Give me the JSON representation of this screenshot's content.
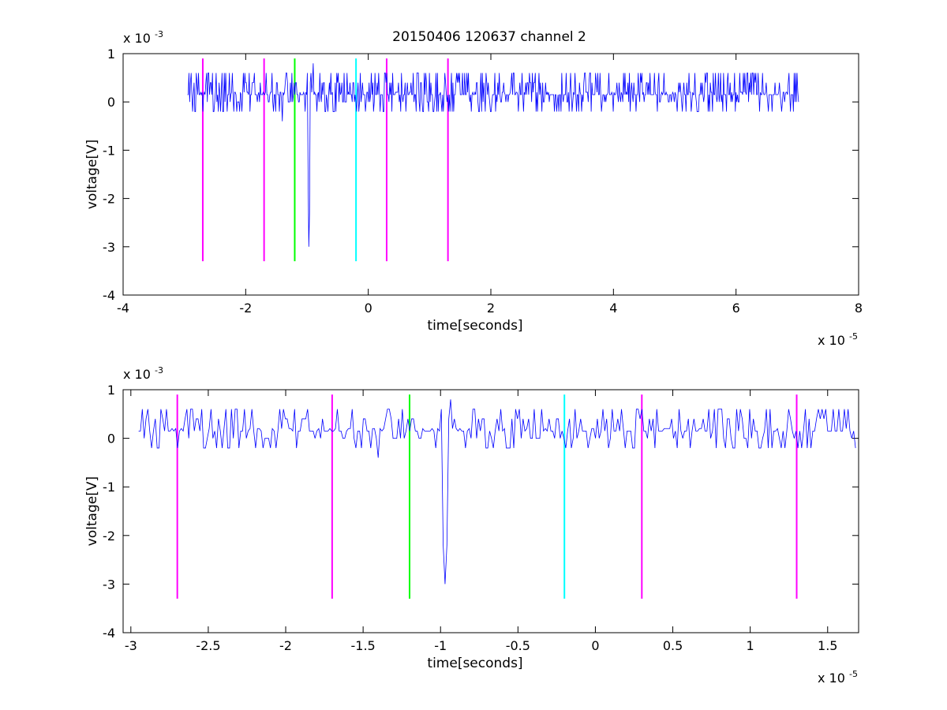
{
  "chart_data": [
    {
      "type": "line",
      "title": "20150406 120637 channel 2",
      "xlabel": "time[seconds]",
      "ylabel": "voltage[V]",
      "x_exponent": {
        "base": "x 10",
        "power": "-5"
      },
      "y_exponent": {
        "base": "x 10",
        "power": "-3"
      },
      "xlim": [
        -4,
        8
      ],
      "ylim": [
        -4,
        1
      ],
      "xticks": [
        -4,
        -2,
        0,
        2,
        4,
        6,
        8
      ],
      "xtick_labels": [
        "-4",
        "-2",
        "0",
        "2",
        "4",
        "6",
        "8"
      ],
      "yticks": [
        1,
        0,
        -1,
        -2,
        -3,
        -4
      ],
      "ytick_labels": [
        "1",
        "0",
        "-1",
        "-2",
        "-3",
        "-4"
      ],
      "grid": false,
      "series": [
        {
          "color": "#0000ff",
          "x_start": -2.95,
          "x_end": 7.02,
          "baseline": 0.15,
          "noise_levels": [
            0,
            0.2,
            0.4,
            0.6,
            -0.2
          ],
          "features": [
            {
              "x": -1.45,
              "y": -0.2
            },
            {
              "x": -1.4,
              "y": -0.4
            },
            {
              "x": -0.98,
              "y": -1.4
            },
            {
              "x": -0.97,
              "y": -3.0
            },
            {
              "x": -0.96,
              "y": -2.3
            },
            {
              "x": -0.93,
              "y": 0.6
            },
            {
              "x": -0.9,
              "y": 0.8
            }
          ]
        }
      ],
      "markers": [
        {
          "x": -2.7,
          "color": "#ff00ff",
          "y_range": [
            -3.3,
            0.9
          ]
        },
        {
          "x": -1.7,
          "color": "#ff00ff",
          "y_range": [
            -3.3,
            0.9
          ]
        },
        {
          "x": -1.2,
          "color": "#00ff00",
          "y_range": [
            -3.3,
            0.9
          ]
        },
        {
          "x": -0.2,
          "color": "#00ffff",
          "y_range": [
            -3.3,
            0.9
          ]
        },
        {
          "x": 0.3,
          "color": "#ff00ff",
          "y_range": [
            -3.3,
            0.9
          ]
        },
        {
          "x": 1.3,
          "color": "#ff00ff",
          "y_range": [
            -3.3,
            0.9
          ]
        }
      ]
    },
    {
      "type": "line",
      "title": "",
      "xlabel": "time[seconds]",
      "ylabel": "voltage[V]",
      "x_exponent": {
        "base": "x 10",
        "power": "-5"
      },
      "y_exponent": {
        "base": "x 10",
        "power": "-3"
      },
      "xlim": [
        -3.05,
        1.7
      ],
      "ylim": [
        -4,
        1
      ],
      "xticks": [
        -3,
        -2.5,
        -2,
        -1.5,
        -1,
        -0.5,
        0,
        0.5,
        1,
        1.5
      ],
      "xtick_labels": [
        "-3",
        "-2.5",
        "-2",
        "-1.5",
        "-1",
        "-0.5",
        "0",
        "0.5",
        "1",
        "1.5"
      ],
      "yticks": [
        1,
        0,
        -1,
        -2,
        -3,
        -4
      ],
      "ytick_labels": [
        "1",
        "0",
        "-1",
        "-2",
        "-3",
        "-4"
      ],
      "grid": false,
      "series": [
        {
          "color": "#0000ff",
          "x_start": -2.95,
          "x_end": 1.68,
          "baseline": 0.15,
          "noise_levels": [
            0,
            0.2,
            0.4,
            0.6,
            -0.2
          ],
          "features": [
            {
              "x": -2.32,
              "y": 0.6
            },
            {
              "x": -1.45,
              "y": -0.2
            },
            {
              "x": -1.4,
              "y": -0.4
            },
            {
              "x": -0.98,
              "y": -2.2
            },
            {
              "x": -0.97,
              "y": -3.0
            },
            {
              "x": -0.96,
              "y": -2.2
            },
            {
              "x": -0.93,
              "y": 0.8
            },
            {
              "x": -0.78,
              "y": 0.6
            },
            {
              "x": 0.77,
              "y": 0.6
            }
          ]
        }
      ],
      "markers": [
        {
          "x": -2.7,
          "color": "#ff00ff",
          "y_range": [
            -3.3,
            0.9
          ]
        },
        {
          "x": -1.7,
          "color": "#ff00ff",
          "y_range": [
            -3.3,
            0.9
          ]
        },
        {
          "x": -1.2,
          "color": "#00ff00",
          "y_range": [
            -3.3,
            0.9
          ]
        },
        {
          "x": -0.2,
          "color": "#00ffff",
          "y_range": [
            -3.3,
            0.9
          ]
        },
        {
          "x": 0.3,
          "color": "#ff00ff",
          "y_range": [
            -3.3,
            0.9
          ]
        },
        {
          "x": 1.3,
          "color": "#ff00ff",
          "y_range": [
            -3.3,
            0.9
          ]
        }
      ]
    }
  ]
}
